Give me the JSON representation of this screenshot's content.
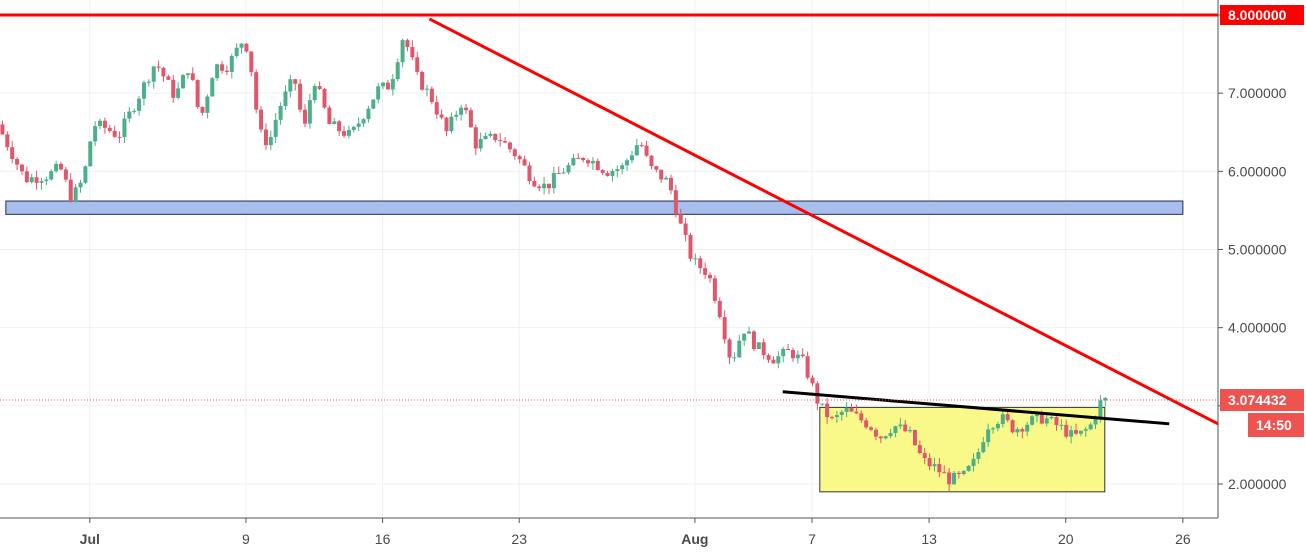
{
  "chart_data": {
    "type": "candlestick",
    "y_axis": {
      "ticks": [
        "2.000000",
        "3.000000",
        "4.000000",
        "5.000000",
        "6.000000",
        "7.000000",
        "8.000000"
      ],
      "range": [
        1.5,
        8.2
      ],
      "position": "right"
    },
    "x_axis": {
      "ticks": [
        {
          "label": "Jul",
          "day": 0,
          "bold": true
        },
        {
          "label": "9",
          "day": 8,
          "bold": false
        },
        {
          "label": "16",
          "day": 15,
          "bold": false
        },
        {
          "label": "23",
          "day": 22,
          "bold": false
        },
        {
          "label": "Aug",
          "day": 31,
          "bold": true
        },
        {
          "label": "7",
          "day": 37,
          "bold": false
        },
        {
          "label": "13",
          "day": 43,
          "bold": false
        },
        {
          "label": "20",
          "day": 50,
          "bold": false
        },
        {
          "label": "26",
          "day": 56,
          "bold": false
        }
      ],
      "range": [
        -4.6,
        57.8
      ]
    },
    "grid": true,
    "price_path": [
      [
        -4.6,
        6.6
      ],
      [
        -4.0,
        6.3
      ],
      [
        -3.2,
        5.9
      ],
      [
        -2.0,
        5.95
      ],
      [
        -1.4,
        6.05
      ],
      [
        -0.8,
        5.65
      ],
      [
        -0.2,
        5.9
      ],
      [
        0.3,
        6.6
      ],
      [
        1.0,
        6.55
      ],
      [
        1.6,
        6.45
      ],
      [
        2.5,
        6.9
      ],
      [
        3.5,
        7.4
      ],
      [
        4.5,
        6.95
      ],
      [
        5.2,
        7.35
      ],
      [
        5.8,
        6.65
      ],
      [
        6.5,
        7.35
      ],
      [
        7.2,
        7.35
      ],
      [
        8.0,
        7.7
      ],
      [
        8.3,
        7.5
      ],
      [
        8.8,
        6.5
      ],
      [
        9.3,
        6.35
      ],
      [
        9.8,
        6.8
      ],
      [
        10.6,
        7.2
      ],
      [
        11.1,
        6.5
      ],
      [
        11.6,
        7.2
      ],
      [
        12.4,
        6.6
      ],
      [
        13.5,
        6.45
      ],
      [
        14.3,
        6.8
      ],
      [
        14.9,
        7.05
      ],
      [
        15.5,
        7.1
      ],
      [
        16.2,
        7.75
      ],
      [
        16.9,
        7.2
      ],
      [
        17.6,
        6.95
      ],
      [
        18.4,
        6.5
      ],
      [
        19.2,
        6.9
      ],
      [
        19.9,
        6.35
      ],
      [
        21.0,
        6.45
      ],
      [
        22.0,
        6.2
      ],
      [
        22.8,
        5.9
      ],
      [
        23.5,
        5.8
      ],
      [
        24.3,
        6.0
      ],
      [
        25.5,
        6.2
      ],
      [
        26.6,
        6.0
      ],
      [
        27.4,
        6.05
      ],
      [
        28.3,
        6.4
      ],
      [
        28.8,
        6.05
      ],
      [
        29.8,
        5.85
      ],
      [
        30.4,
        5.3
      ],
      [
        31.0,
        4.85
      ],
      [
        31.8,
        4.7
      ],
      [
        32.4,
        4.2
      ],
      [
        33.0,
        3.55
      ],
      [
        33.6,
        4.0
      ],
      [
        34.3,
        3.75
      ],
      [
        35.2,
        3.6
      ],
      [
        36.0,
        3.7
      ],
      [
        36.7,
        3.55
      ],
      [
        37.5,
        3.0
      ],
      [
        38.2,
        2.8
      ],
      [
        38.8,
        2.95
      ],
      [
        40.1,
        2.75
      ],
      [
        40.6,
        2.6
      ],
      [
        41.3,
        2.75
      ],
      [
        42.1,
        2.65
      ],
      [
        42.8,
        2.3
      ],
      [
        43.5,
        2.2
      ],
      [
        44.2,
        2.05
      ],
      [
        44.9,
        2.1
      ],
      [
        45.5,
        2.3
      ],
      [
        46.1,
        2.75
      ],
      [
        46.8,
        2.85
      ],
      [
        47.5,
        2.7
      ],
      [
        48.3,
        2.8
      ],
      [
        49.0,
        2.85
      ],
      [
        50.0,
        2.7
      ],
      [
        50.5,
        2.6
      ],
      [
        51.0,
        2.65
      ],
      [
        51.4,
        2.75
      ],
      [
        51.8,
        3.0
      ],
      [
        52.0,
        3.07
      ]
    ],
    "last_price": "3.074432",
    "countdown": "14:50",
    "colors": {
      "up": "#4bb08a",
      "down": "#e0566a",
      "resistance_line": "#ff0000",
      "support_zone_fill": "#a8bfee",
      "pattern_box_fill": "#f9f98a",
      "neckline": "#000000",
      "price_badge": "#ef5350"
    },
    "annotations": [
      {
        "kind": "horizontal_line",
        "price": 8.0,
        "color": "red"
      },
      {
        "kind": "trend_line",
        "from": [
          17.4,
          7.95
        ],
        "to": [
          57.8,
          2.77
        ],
        "color": "red"
      },
      {
        "kind": "zone",
        "price_low": 5.45,
        "price_high": 5.62,
        "day_from": -4.3,
        "day_to": 56.0,
        "color": "blue"
      },
      {
        "kind": "box",
        "price_low": 1.9,
        "price_high": 2.98,
        "day_from": 37.4,
        "day_to": 52.0,
        "color": "yellow"
      },
      {
        "kind": "trend_line",
        "from": [
          35.5,
          3.18
        ],
        "to": [
          55.3,
          2.77
        ],
        "color": "black"
      }
    ]
  }
}
